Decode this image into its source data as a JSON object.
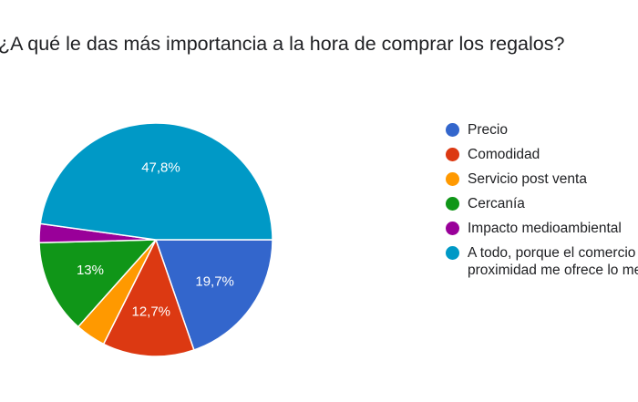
{
  "question": "¿A qué le das más importancia a la hora de comprar los regalos?",
  "chart_data": {
    "type": "pie",
    "slices": [
      {
        "label": "Precio",
        "value": 19.7,
        "display": "19,7%",
        "color": "#3366cc"
      },
      {
        "label": "Comodidad",
        "value": 12.7,
        "display": "12,7%",
        "color": "#dc3912"
      },
      {
        "label": "Servicio post venta",
        "value": 4.2,
        "display": "",
        "color": "#ff9900"
      },
      {
        "label": "Cercanía",
        "value": 13.0,
        "display": "13%",
        "color": "#109618"
      },
      {
        "label": "Impacto medioambiental",
        "value": 2.6,
        "display": "",
        "color": "#990099"
      },
      {
        "label": "A todo, porque el comercio de\nproximidad me ofrece lo mejor",
        "value": 47.8,
        "display": "47,8%",
        "color": "#0099c6"
      }
    ],
    "legend_position": "right"
  }
}
